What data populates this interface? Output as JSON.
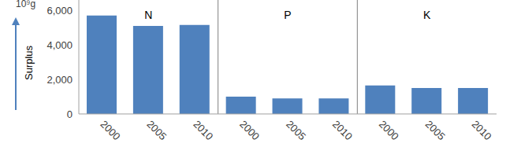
{
  "chart_data": {
    "type": "bar",
    "ylabel": "Surplus",
    "y_unit": "10⁹g",
    "groups": [
      "N",
      "P",
      "K"
    ],
    "categories": [
      "2000",
      "2005",
      "2010",
      "2000",
      "2005",
      "2010",
      "2000",
      "2005",
      "2010"
    ],
    "values": [
      5700,
      5100,
      5150,
      1000,
      900,
      900,
      1650,
      1500,
      1500
    ],
    "color": "#4f81bd",
    "ylim": [
      0,
      6600
    ],
    "yticks": [
      0,
      {
        "value": 2000,
        "label": "2,000"
      },
      {
        "value": 4000,
        "label": "4,000"
      },
      {
        "value": 6000,
        "label": "6,000"
      }
    ],
    "grid": false
  }
}
